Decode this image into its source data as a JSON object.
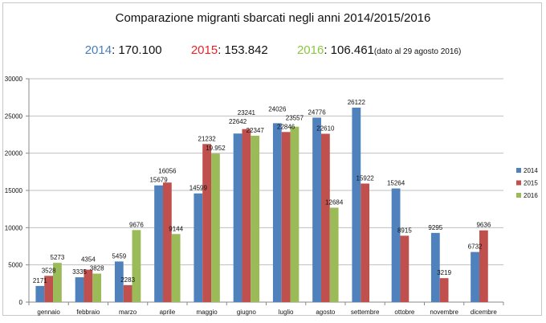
{
  "chart_data": {
    "type": "bar",
    "title": "Comparazione migranti sbarcati negli anni 2014/2015/2016",
    "subtitle_totals": [
      {
        "year": "2014",
        "sep": ": ",
        "total": "170.100",
        "note": "",
        "color": "#4a7ebb"
      },
      {
        "year": "2015",
        "sep": ": ",
        "total": "153.842",
        "note": "",
        "color": "#e8232a"
      },
      {
        "year": "2016",
        "sep": ": ",
        "total": "106.461",
        "note": "(dato al 29 agosto 2016)",
        "color": "#8dc63f"
      }
    ],
    "categories": [
      "gennaio",
      "febbraio",
      "marzo",
      "aprile",
      "maggio",
      "giugno",
      "luglio",
      "agosto",
      "settembre",
      "ottobre",
      "novembre",
      "dicembre"
    ],
    "series": [
      {
        "name": "2014",
        "color": "#4f81bd",
        "values": [
          2171,
          3335,
          5459,
          15679,
          14599,
          22642,
          24026,
          24776,
          26122,
          15264,
          9295,
          6732
        ],
        "labels": [
          "2171",
          "3335",
          "5459",
          "15679",
          "14599",
          "22642",
          "24026",
          "24776",
          "26122",
          "15264",
          "9295",
          "6732"
        ]
      },
      {
        "name": "2015",
        "color": "#c0504d",
        "values": [
          3528,
          4354,
          2283,
          16056,
          21232,
          23241,
          22846,
          22610,
          15922,
          8915,
          3219,
          9636
        ],
        "labels": [
          "3528",
          "4354",
          "2283",
          "16056",
          "21232",
          "23241",
          "22846",
          "22610",
          "15922",
          "8915",
          "3219",
          "9636"
        ]
      },
      {
        "name": "2016",
        "color": "#9bbb59",
        "values": [
          5273,
          3828,
          9676,
          9144,
          19952,
          22347,
          23557,
          12684,
          null,
          null,
          null,
          null
        ],
        "labels": [
          "5273",
          "3828",
          "9676",
          "9144",
          "19.952",
          "22347",
          "23557",
          "12684",
          "",
          "",
          "",
          ""
        ]
      }
    ],
    "xlabel": "",
    "ylabel": "",
    "ylim": [
      0,
      30000
    ],
    "yticks": [
      0,
      5000,
      10000,
      15000,
      20000,
      25000,
      30000
    ],
    "grid": true,
    "gridline_color": "#bfbfbf",
    "legend_position": "right"
  }
}
